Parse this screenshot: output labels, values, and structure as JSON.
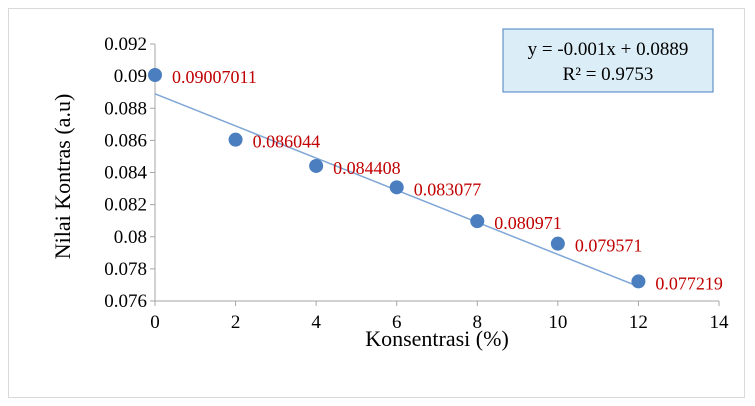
{
  "chart_data": {
    "type": "scatter",
    "xlabel": "Konsentrasi (%)",
    "ylabel": "Nilai Kontras (a.u)",
    "xlim": [
      0,
      14
    ],
    "ylim": [
      0.076,
      0.092
    ],
    "x_ticks": [
      "0",
      "2",
      "4",
      "6",
      "8",
      "10",
      "12",
      "14"
    ],
    "y_ticks": [
      "0.076",
      "0.078",
      "0.08",
      "0.082",
      "0.084",
      "0.086",
      "0.088",
      "0.09",
      "0.092"
    ],
    "series": [
      {
        "x": [
          0,
          2,
          4,
          6,
          8,
          10,
          12
        ],
        "y": [
          0.09007011,
          0.086044,
          0.084408,
          0.083077,
          0.080971,
          0.079571,
          0.077219
        ],
        "labels": [
          "0.09007011",
          "0.086044",
          "0.084408",
          "0.083077",
          "0.080971",
          "0.079571",
          "0.077219"
        ],
        "color": "#4a7ebf"
      }
    ],
    "trendline": {
      "type": "linear",
      "slope": -0.001,
      "intercept": 0.0889,
      "x_range": [
        0,
        12
      ],
      "color": "#7fa7d6",
      "equation": "y = -0.001x + 0.0889",
      "r_squared": "R² = 0.9753"
    },
    "label_color": "#c00000",
    "grid": false,
    "legend": "none"
  }
}
